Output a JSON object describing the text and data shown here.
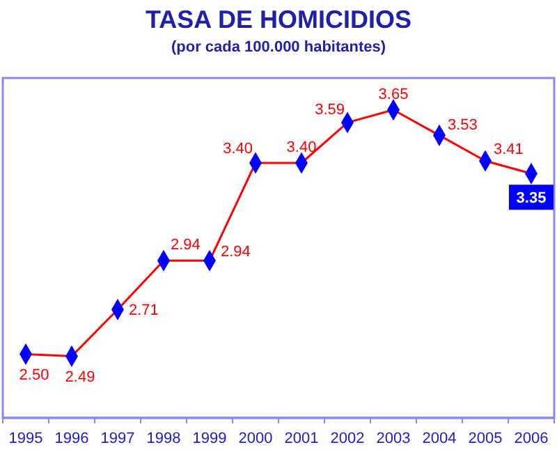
{
  "chart_data": {
    "type": "line",
    "title": "TASA DE HOMICIDIOS",
    "subtitle": "(por cada 100.000 habitantes)",
    "categories": [
      "1995",
      "1996",
      "1997",
      "1998",
      "1999",
      "2000",
      "2001",
      "2002",
      "2003",
      "2004",
      "2005",
      "2006"
    ],
    "series": [
      {
        "color": "#ff0000",
        "values": [
          2.5,
          2.49,
          2.71,
          2.94,
          2.94,
          3.4,
          3.4,
          3.59,
          3.65,
          3.53,
          3.41,
          3.35
        ],
        "value_labels": [
          "2.50",
          "2.49",
          "2.71",
          "2.94",
          "2.94",
          "3.40",
          "3.40",
          "3.59",
          "3.65",
          "3.53",
          "3.41",
          "3.35"
        ]
      }
    ],
    "ylim": [
      2.2,
      3.8
    ],
    "tick_labels": "x",
    "marker": "diamond"
  }
}
